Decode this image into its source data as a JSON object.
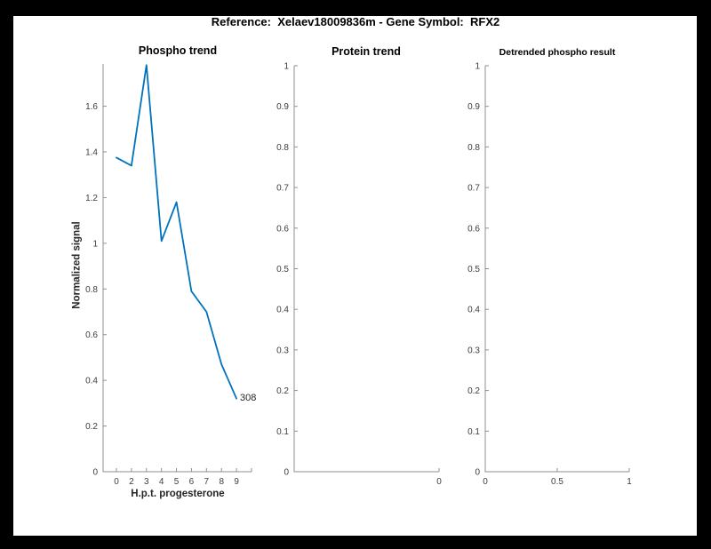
{
  "figure": {
    "title": "Reference:  Xelaev18009836m - Gene Symbol:  RFX2"
  },
  "colors": {
    "line": "#0072BD",
    "axis": "#8f8f8f",
    "tick_label": "#3d3d3d",
    "title": "#000000",
    "figure_background": "#ffffff",
    "frame": "#000000"
  },
  "chart_data": [
    {
      "type": "line",
      "title": "Phospho trend",
      "xlabel": "H.p.t. progesterone",
      "ylabel": "Normalized signal",
      "x_tick_labels": [
        "0",
        "2",
        "3",
        "4",
        "5",
        "6",
        "7",
        "8",
        "9",
        ""
      ],
      "x": [
        0,
        2,
        3,
        4,
        5,
        6,
        7,
        8,
        9
      ],
      "values": [
        1.375,
        1.34,
        1.78,
        1.01,
        1.18,
        0.79,
        0.7,
        0.47,
        0.32
      ],
      "y_ticks": [
        0,
        0.2,
        0.4,
        0.6,
        0.8,
        1,
        1.2,
        1.4,
        1.6
      ],
      "ylim": [
        0,
        1.785
      ],
      "end_label": "308",
      "grid": false,
      "legend": null
    },
    {
      "type": "line",
      "title": "Protein trend",
      "xlabel": "",
      "ylabel": "",
      "x_tick_labels": [
        "0"
      ],
      "x": [],
      "values": [],
      "y_ticks": [
        0,
        0.1,
        0.2,
        0.3,
        0.4,
        0.5,
        0.6,
        0.7,
        0.8,
        0.9,
        1
      ],
      "ylim": [
        0,
        1
      ],
      "grid": false,
      "legend": null
    },
    {
      "type": "line",
      "title": "Detrended phospho result",
      "xlabel": "",
      "ylabel": "",
      "x_tick_labels": [
        "0",
        "0.5",
        "1"
      ],
      "x": [],
      "values": [],
      "y_ticks": [
        0,
        0.1,
        0.2,
        0.3,
        0.4,
        0.5,
        0.6,
        0.7,
        0.8,
        0.9,
        1
      ],
      "ylim": [
        0,
        1
      ],
      "grid": false,
      "legend": null
    }
  ]
}
